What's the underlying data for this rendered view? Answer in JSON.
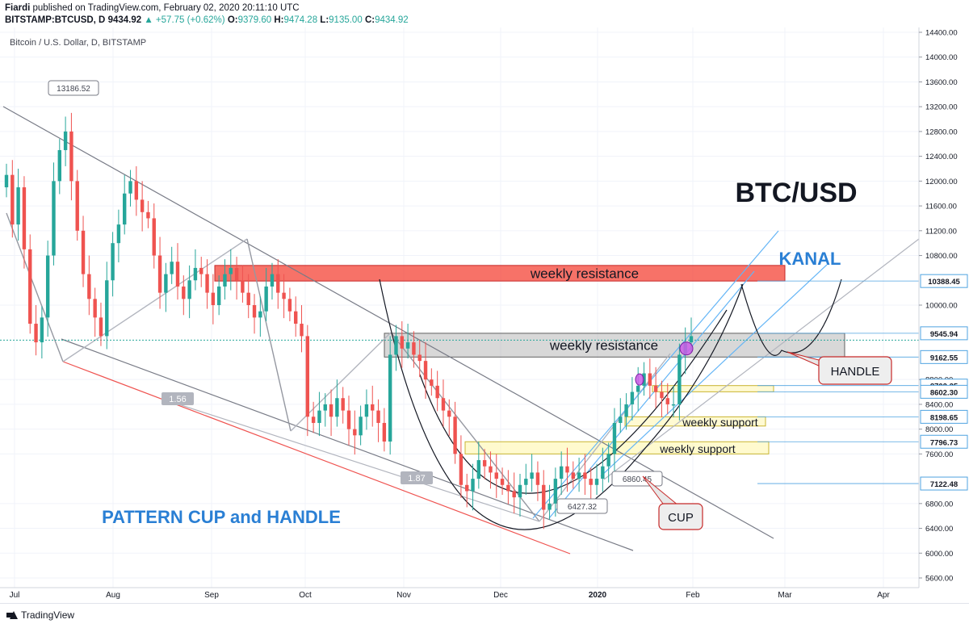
{
  "header": {
    "author": "Fiardi",
    "published_text": "published on TradingView.com, February 02, 2020 20:11:10 UTC",
    "symbol": "BITSTAMP:BTCUSD, D",
    "last": "9434.92",
    "change": "▲ +57.75 (+0.62%)",
    "o_label": "O:",
    "o_value": "9379.60",
    "h_label": "H:",
    "h_value": "9474.28",
    "l_label": "L:",
    "l_value": "9135.00",
    "c_label": "C:",
    "c_value": "9434.92"
  },
  "footer": {
    "brand": "TradingView"
  },
  "chart_data": {
    "type": "candlestick",
    "title": "Bitcoin / U.S. Dollar, D, BITSTAMP",
    "x_tick_labels": [
      "Jul",
      "Aug",
      "Sep",
      "Oct",
      "Nov",
      "Dec",
      "2020",
      "Feb",
      "Mar",
      "Apr"
    ],
    "y_tick_labels": [
      "14400.00",
      "14000.00",
      "13600.00",
      "13200.00",
      "12800.00",
      "12400.00",
      "12000.00",
      "11600.00",
      "11200.00",
      "10800.00",
      "10000.00",
      "8800.00",
      "8400.00",
      "8000.00",
      "7600.00",
      "6800.00",
      "6400.00",
      "6000.00",
      "5600.00"
    ],
    "ylim": [
      5400,
      14500
    ],
    "price_labels": [
      {
        "value": 10388.45,
        "label": "10388.45"
      },
      {
        "value": 9545.94,
        "label": "9545.94"
      },
      {
        "value": 9162.55,
        "label": "9162.55"
      },
      {
        "value": 8702.25,
        "label": "8702.25"
      },
      {
        "value": 8602.3,
        "label": "8602.30"
      },
      {
        "value": 8198.65,
        "label": "8198.65"
      },
      {
        "value": 7796.73,
        "label": "7796.73"
      },
      {
        "value": 7122.48,
        "label": "7122.48"
      }
    ],
    "callouts": [
      {
        "label": "13186.52",
        "value": 13186.52
      },
      {
        "label": "6427.32",
        "value": 6427.32
      },
      {
        "label": "6860.45",
        "value": 6860.45
      }
    ],
    "zones": [
      {
        "label": "weekly resistance",
        "from": 10388.45,
        "to": 10640,
        "color": "#f44336"
      },
      {
        "label": "weekly resistance",
        "from": 9162.55,
        "to": 9545.94,
        "color": "#9e9e9e"
      },
      {
        "label": "",
        "from": 8602.3,
        "to": 8702.25,
        "color": "#fff59d"
      },
      {
        "label": "weekly support",
        "from": 8050,
        "to": 8198.65,
        "color": "#fff59d"
      },
      {
        "label": "weekly support",
        "from": 7600,
        "to": 7796.73,
        "color": "#fff59d"
      }
    ],
    "ratio_labels": [
      "1.56",
      "1.87"
    ],
    "annotations": {
      "main_title": "BTC/USD",
      "channel": "KANAL",
      "pattern": "PATTERN CUP and HANDLE",
      "handle": "HANDLE",
      "cup": "CUP"
    },
    "colors": {
      "up": "#26a69a",
      "down": "#ef5350",
      "blue_text": "#2a7fd4"
    },
    "series": [
      {
        "name": "close",
        "values": [
          12100,
          11300,
          11900,
          10900,
          9700,
          9400,
          9800,
          10800,
          12000,
          12500,
          12800,
          12000,
          11200,
          10500,
          10100,
          9800,
          9500,
          10400,
          11000,
          11300,
          11800,
          12000,
          11700,
          11500,
          11400,
          10800,
          10200,
          10500,
          10700,
          10300,
          10100,
          10400,
          10600,
          10500,
          10200,
          10000,
          10300,
          10500,
          10600,
          10400,
          10200,
          10000,
          9800,
          9900,
          10300,
          10500,
          10200,
          10100,
          9900,
          9700,
          9500,
          8200,
          8100,
          8300,
          8400,
          8200,
          8500,
          8300,
          8000,
          7900,
          8200,
          8400,
          8300,
          8100,
          7800,
          9200,
          9500,
          9300,
          9400,
          9200,
          9100,
          8800,
          8700,
          8500,
          8300,
          8200,
          7600,
          7100,
          7000,
          7200,
          7500,
          7400,
          7300,
          7200,
          7100,
          7000,
          6900,
          7100,
          7200,
          7300,
          7100,
          6700,
          6800,
          7200,
          7400,
          7300,
          7200,
          7300,
          7200,
          7100,
          7200,
          7400,
          7600,
          8100,
          8200,
          8400,
          8600,
          8700,
          8900,
          8700,
          8600,
          8500,
          8400,
          8400,
          9200,
          9400,
          9500
        ]
      }
    ]
  }
}
